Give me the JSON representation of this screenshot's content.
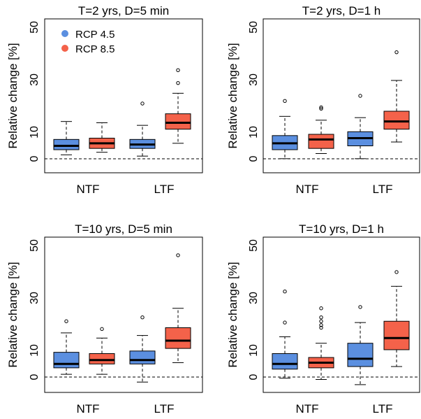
{
  "chart_data": [
    {
      "type": "box",
      "title": "T=2 yrs, D=5 min",
      "ylabel": "Relative change [%]",
      "ylim": [
        -6,
        54
      ],
      "yticks": [
        0,
        10,
        30,
        50
      ],
      "categories": [
        "NTF",
        "LTF"
      ],
      "legend": {
        "placement": "top-left",
        "entries": [
          {
            "name": "RCP 4.5",
            "color": "#5B8FE0"
          },
          {
            "name": "RCP 8.5",
            "color": "#F4624A"
          }
        ]
      },
      "reference_line": 0,
      "boxes": [
        {
          "category": "NTF",
          "series": "RCP 4.5",
          "whisker_low": 1,
          "q1": 3,
          "median": 4.5,
          "q3": 7,
          "whisker_high": 14,
          "outliers": []
        },
        {
          "category": "NTF",
          "series": "RCP 8.5",
          "whisker_low": 2,
          "q1": 3.5,
          "median": 5.5,
          "q3": 7.5,
          "whisker_high": 13.5,
          "outliers": []
        },
        {
          "category": "LTF",
          "series": "RCP 4.5",
          "whisker_low": 0.5,
          "q1": 3.5,
          "median": 5,
          "q3": 7,
          "whisker_high": 12.5,
          "outliers": [
            21
          ]
        },
        {
          "category": "LTF",
          "series": "RCP 8.5",
          "whisker_low": 5.5,
          "q1": 11,
          "median": 13.5,
          "q3": 17,
          "whisker_high": 25,
          "outliers": [
            29,
            34
          ]
        }
      ]
    },
    {
      "type": "box",
      "title": "T=2 yrs, D=1 h",
      "ylabel": "Relative change [%]",
      "ylim": [
        -6,
        54
      ],
      "yticks": [
        0,
        10,
        30,
        50
      ],
      "categories": [
        "NTF",
        "LTF"
      ],
      "reference_line": 0,
      "boxes": [
        {
          "category": "NTF",
          "series": "RCP 4.5",
          "whisker_low": -0.5,
          "q1": 3,
          "median": 5.5,
          "q3": 8.5,
          "whisker_high": 16,
          "outliers": [
            22
          ]
        },
        {
          "category": "NTF",
          "series": "RCP 8.5",
          "whisker_low": 1.5,
          "q1": 3.5,
          "median": 7,
          "q3": 9,
          "whisker_high": 14.5,
          "outliers": [
            19,
            19.5
          ]
        },
        {
          "category": "LTF",
          "series": "RCP 4.5",
          "whisker_low": -0.5,
          "q1": 4.5,
          "median": 7.5,
          "q3": 10,
          "whisker_high": 15.5,
          "outliers": [
            24
          ]
        },
        {
          "category": "LTF",
          "series": "RCP 8.5",
          "whisker_low": 6,
          "q1": 11,
          "median": 14,
          "q3": 18,
          "whisker_high": 30,
          "outliers": [
            41
          ]
        }
      ]
    },
    {
      "type": "box",
      "title": "T=10 yrs, D=5 min",
      "ylabel": "Relative change [%]",
      "ylim": [
        -6,
        54
      ],
      "yticks": [
        0,
        10,
        30,
        50
      ],
      "categories": [
        "NTF",
        "LTF"
      ],
      "reference_line": 0,
      "boxes": [
        {
          "category": "NTF",
          "series": "RCP 4.5",
          "whisker_low": 1,
          "q1": 3.5,
          "median": 5,
          "q3": 9.5,
          "whisker_high": 17,
          "outliers": [
            21.5
          ]
        },
        {
          "category": "NTF",
          "series": "RCP 8.5",
          "whisker_low": 1,
          "q1": 5,
          "median": 6.5,
          "q3": 9,
          "whisker_high": 15,
          "outliers": [
            18.5
          ]
        },
        {
          "category": "LTF",
          "series": "RCP 4.5",
          "whisker_low": -2,
          "q1": 5,
          "median": 6.5,
          "q3": 10,
          "whisker_high": 16,
          "outliers": [
            23
          ]
        },
        {
          "category": "LTF",
          "series": "RCP 8.5",
          "whisker_low": 5.5,
          "q1": 11,
          "median": 14,
          "q3": 19,
          "whisker_high": 26.5,
          "outliers": [
            47
          ]
        }
      ]
    },
    {
      "type": "box",
      "title": "T=10 yrs, D=1 h",
      "ylabel": "Relative change [%]",
      "ylim": [
        -6,
        54
      ],
      "yticks": [
        0,
        10,
        30,
        50
      ],
      "categories": [
        "NTF",
        "LTF"
      ],
      "reference_line": 0,
      "boxes": [
        {
          "category": "NTF",
          "series": "RCP 4.5",
          "whisker_low": -0.5,
          "q1": 3,
          "median": 5,
          "q3": 9,
          "whisker_high": 15.5,
          "outliers": [
            21,
            33
          ]
        },
        {
          "category": "NTF",
          "series": "RCP 8.5",
          "whisker_low": -1,
          "q1": 3.5,
          "median": 5.5,
          "q3": 7.5,
          "whisker_high": 13,
          "outliers": [
            19,
            20,
            21.5,
            23,
            26.5
          ]
        },
        {
          "category": "LTF",
          "series": "RCP 4.5",
          "whisker_low": -3,
          "q1": 4,
          "median": 7,
          "q3": 13,
          "whisker_high": 21,
          "outliers": [
            27
          ]
        },
        {
          "category": "LTF",
          "series": "RCP 8.5",
          "whisker_low": 4,
          "q1": 10.5,
          "median": 15,
          "q3": 21.5,
          "whisker_high": 35,
          "outliers": [
            40.5
          ]
        }
      ]
    }
  ]
}
